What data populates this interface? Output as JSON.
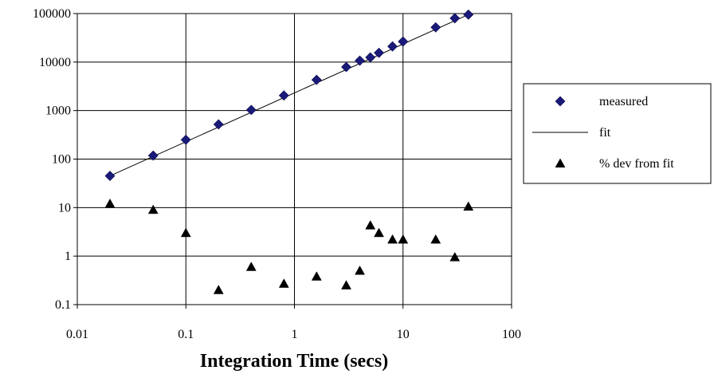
{
  "chart_data": {
    "type": "scatter",
    "title": "",
    "xlabel": "Integration Time (secs)",
    "ylabel": "",
    "x_scale": "log",
    "y_scale": "log",
    "xlim": [
      0.01,
      100
    ],
    "ylim": [
      0.1,
      100000
    ],
    "x_tick_labels": [
      "0.01",
      "0.1",
      "1",
      "10",
      "100"
    ],
    "y_tick_labels": [
      "0.1",
      "1",
      "10",
      "100",
      "1000",
      "10000",
      "100000"
    ],
    "grid": true,
    "legend_position": "right",
    "series": [
      {
        "name": "measured",
        "marker": "diamond",
        "color": "#1a1a7a",
        "x": [
          0.02,
          0.05,
          0.1,
          0.2,
          0.4,
          0.8,
          1.6,
          3,
          4,
          5,
          6,
          8,
          10,
          20,
          30,
          40
        ],
        "y": [
          45,
          118,
          250,
          520,
          1030,
          2050,
          4300,
          7900,
          10700,
          12500,
          15500,
          21000,
          26500,
          52000,
          80000,
          95000
        ]
      },
      {
        "name": "fit",
        "marker": "line",
        "color": "#000000",
        "x": [
          0.02,
          40
        ],
        "y": [
          45,
          95000
        ]
      },
      {
        "name": "% dev from fit",
        "marker": "triangle",
        "color": "#000000",
        "x": [
          0.02,
          0.05,
          0.1,
          0.2,
          0.4,
          0.8,
          1.6,
          3,
          4,
          5,
          6,
          8,
          10,
          20,
          30,
          40
        ],
        "y": [
          12,
          9,
          3,
          0.2,
          0.6,
          0.27,
          0.38,
          0.25,
          0.5,
          4.3,
          3,
          2.2,
          2.2,
          2.2,
          0.95,
          10.5
        ]
      }
    ]
  }
}
